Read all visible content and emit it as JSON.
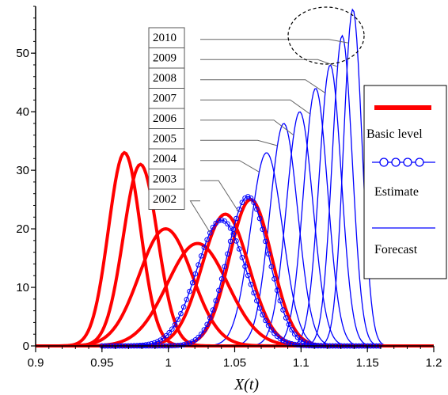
{
  "chart_data": {
    "type": "line",
    "title": "",
    "xlabel": "X(t)",
    "ylabel": "",
    "xlim": [
      0.9,
      1.2
    ],
    "ylim": [
      0,
      58
    ],
    "x_ticks": [
      "0.9",
      "0.95",
      "1",
      "1.05",
      "1.1",
      "1.15",
      "1.2"
    ],
    "y_ticks": [
      "0",
      "10",
      "20",
      "30",
      "40",
      "50"
    ],
    "grid": false,
    "legend_placement": "right",
    "colors": {
      "basic": "#ff0000",
      "estimate": "#0000ff",
      "forecast": "#0000ff"
    },
    "legend": [
      {
        "label": "Basic level",
        "style": "thick-red-line"
      },
      {
        "label": "Estimate",
        "style": "blue-line-circles"
      },
      {
        "label": "Forecast",
        "style": "thin-blue-line"
      }
    ],
    "year_labels": [
      "2010",
      "2009",
      "2008",
      "2007",
      "2006",
      "2005",
      "2004",
      "2003",
      "2002"
    ],
    "series": [
      {
        "group": "basic",
        "peaks": [
          {
            "mean": 0.967,
            "peak": 33
          },
          {
            "mean": 0.979,
            "peak": 31
          },
          {
            "mean": 0.998,
            "peak": 20
          },
          {
            "mean": 1.022,
            "peak": 17.5
          },
          {
            "mean": 1.043,
            "peak": 22.5
          },
          {
            "mean": 1.062,
            "peak": 25
          }
        ]
      },
      {
        "group": "estimate",
        "peaks": [
          {
            "mean": 1.04,
            "peak": 21.5,
            "label": "2002"
          },
          {
            "mean": 1.06,
            "peak": 25.5,
            "label": "2003"
          }
        ]
      },
      {
        "group": "forecast",
        "peaks": [
          {
            "mean": 1.074,
            "peak": 33,
            "label": "2004"
          },
          {
            "mean": 1.087,
            "peak": 38,
            "label": "2005"
          },
          {
            "mean": 1.099,
            "peak": 40,
            "label": "2006"
          },
          {
            "mean": 1.111,
            "peak": 44,
            "label": "2007"
          },
          {
            "mean": 1.122,
            "peak": 48,
            "label": "2008"
          },
          {
            "mean": 1.131,
            "peak": 53,
            "label": "2009"
          },
          {
            "mean": 1.139,
            "peak": 57.5,
            "label": "2010"
          }
        ]
      }
    ],
    "annotations": [
      {
        "type": "dashed-ellipse",
        "around": "2009-2010 peaks"
      }
    ]
  }
}
